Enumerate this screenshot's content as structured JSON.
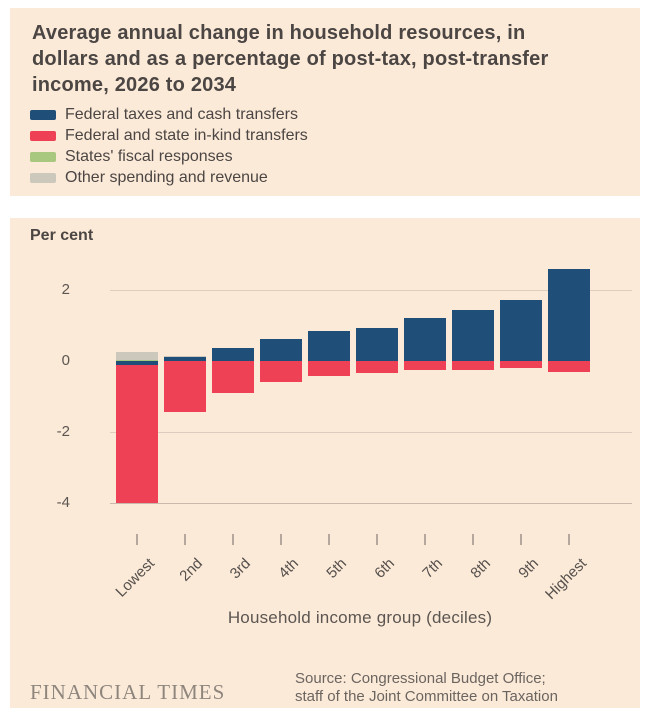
{
  "title_lines": [
    "Average annual change in household resources, in",
    "dollars and as a percentage of post-tax, post-transfer",
    "income, 2026 to 2034"
  ],
  "unit_label": "Per cent",
  "legend": [
    {
      "label": "Federal taxes and cash transfers",
      "color": "#1f4e79"
    },
    {
      "label": "Federal and state in-kind transfers",
      "color": "#ee4156"
    },
    {
      "label": "States' fiscal responses",
      "color": "#a7c87e"
    },
    {
      "label": "Other spending and revenue",
      "color": "#ccc8bc"
    }
  ],
  "chart_data": {
    "type": "bar",
    "stacked": true,
    "title": "Average annual change in household resources, in dollars and as a percentage of post-tax, post-transfer income, 2026 to 2034",
    "ylabel": "Per cent",
    "xlabel": "Household income group (deciles)",
    "categories": [
      "Lowest",
      "2nd",
      "3rd",
      "4th",
      "5th",
      "6th",
      "7th",
      "8th",
      "9th",
      "Highest"
    ],
    "series": [
      {
        "name": "Federal taxes and cash transfers",
        "color": "#1f4e79",
        "values": [
          -0.1,
          0.1,
          0.37,
          0.62,
          0.85,
          0.93,
          1.2,
          1.45,
          1.72,
          2.6
        ]
      },
      {
        "name": "Federal and state in-kind transfers",
        "color": "#ee4156",
        "values": [
          -3.9,
          -1.45,
          -0.9,
          -0.6,
          -0.42,
          -0.35,
          -0.25,
          -0.25,
          -0.2,
          -0.3
        ]
      },
      {
        "name": "States' fiscal responses",
        "color": "#a7c87e",
        "values": [
          0.04,
          0,
          0,
          0,
          0,
          0,
          0,
          0,
          0,
          0
        ]
      },
      {
        "name": "Other spending and revenue",
        "color": "#ccc8bc",
        "values": [
          0.2,
          0.04,
          0,
          0,
          0,
          0,
          0,
          0,
          0,
          0
        ]
      }
    ],
    "yticks": [
      2,
      0,
      -2,
      -4
    ],
    "gridline_values": [
      2,
      -2,
      -4
    ],
    "ylim": [
      -4.3,
      3.0
    ],
    "grid": true,
    "legend_position": "top-left"
  },
  "footer": {
    "brand": "FINANCIAL TIMES",
    "source_line1": "Source: Congressional Budget Office;",
    "source_line2": "staff of the Joint Committee on Taxation"
  },
  "colors": {
    "panel_bg": "#fcead9",
    "page_bg": "#ffffff",
    "gridline": "#dccdbf",
    "baseline": "#c9b8ab",
    "text_dark": "#4b4643",
    "text_axis": "#5c5651",
    "brand_text": "#8e867d"
  }
}
